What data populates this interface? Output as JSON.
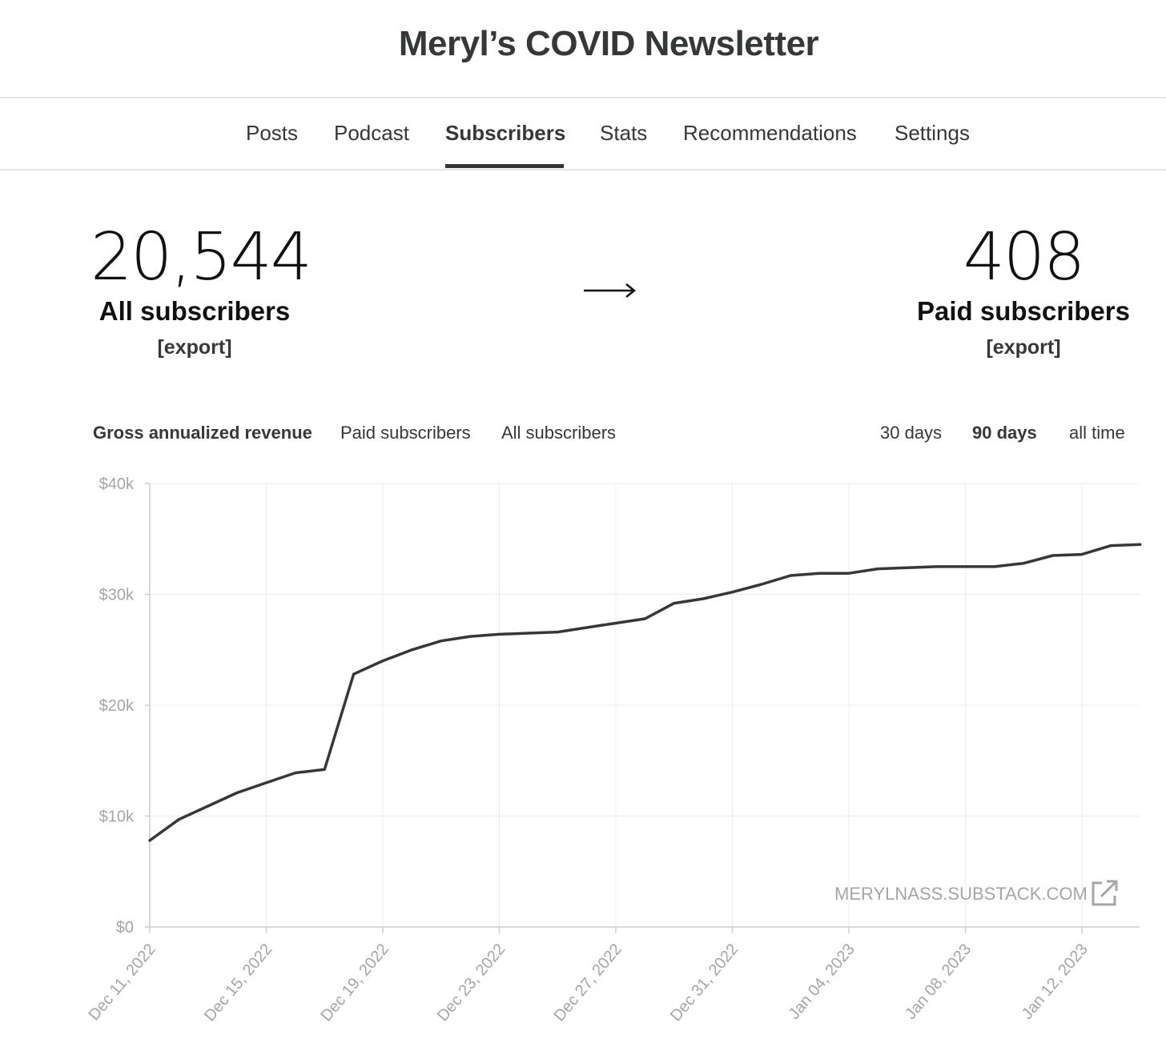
{
  "header": {
    "title": "Meryl’s COVID Newsletter"
  },
  "nav": {
    "tabs": [
      {
        "label": "Posts",
        "active": false
      },
      {
        "label": "Podcast",
        "active": false
      },
      {
        "label": "Subscribers",
        "active": true
      },
      {
        "label": "Stats",
        "active": false
      },
      {
        "label": "Recommendations",
        "active": false
      },
      {
        "label": "Settings",
        "active": false
      }
    ]
  },
  "stats": {
    "all": {
      "value": "20,544",
      "label": "All subscribers",
      "export": "[export]"
    },
    "arrow": "→",
    "paid": {
      "value": "408",
      "label": "Paid subscribers",
      "export": "[export]"
    }
  },
  "chart_tabs": {
    "metrics": [
      {
        "label": "Gross annualized revenue",
        "active": true
      },
      {
        "label": "Paid subscribers",
        "active": false
      },
      {
        "label": "All subscribers",
        "active": false
      }
    ],
    "ranges": [
      {
        "label": "30 days",
        "active": false
      },
      {
        "label": "90 days",
        "active": true
      },
      {
        "label": "all time",
        "active": false
      }
    ]
  },
  "chart_data": {
    "type": "line",
    "y_tick_labels": [
      "$0",
      "$10k",
      "$20k",
      "$30k",
      "$40k"
    ],
    "ylim": [
      0,
      40000
    ],
    "x_tick_labels": [
      "Dec 11, 2022",
      "Dec 15, 2022",
      "Dec 19, 2022",
      "Dec 23, 2022",
      "Dec 27, 2022",
      "Dec 31, 2022",
      "Jan 04, 2023",
      "Jan 08, 2023",
      "Jan 12, 2023"
    ],
    "x_range": [
      "Dec 11, 2022",
      "Jan 13, 2023"
    ],
    "grid": true,
    "series": [
      {
        "color": "#363737",
        "points": [
          {
            "x": "2022-12-11",
            "y": 7800
          },
          {
            "x": "2022-12-12",
            "y": 9700
          },
          {
            "x": "2022-12-13",
            "y": 10900
          },
          {
            "x": "2022-12-14",
            "y": 12100
          },
          {
            "x": "2022-12-15",
            "y": 13000
          },
          {
            "x": "2022-12-16",
            "y": 13900
          },
          {
            "x": "2022-12-17",
            "y": 14200
          },
          {
            "x": "2022-12-18",
            "y": 22800
          },
          {
            "x": "2022-12-19",
            "y": 24000
          },
          {
            "x": "2022-12-20",
            "y": 25000
          },
          {
            "x": "2022-12-21",
            "y": 25800
          },
          {
            "x": "2022-12-22",
            "y": 26200
          },
          {
            "x": "2022-12-23",
            "y": 26400
          },
          {
            "x": "2022-12-24",
            "y": 26500
          },
          {
            "x": "2022-12-25",
            "y": 26600
          },
          {
            "x": "2022-12-26",
            "y": 27000
          },
          {
            "x": "2022-12-27",
            "y": 27400
          },
          {
            "x": "2022-12-28",
            "y": 27800
          },
          {
            "x": "2022-12-29",
            "y": 29200
          },
          {
            "x": "2022-12-30",
            "y": 29600
          },
          {
            "x": "2022-12-31",
            "y": 30200
          },
          {
            "x": "2023-01-01",
            "y": 30900
          },
          {
            "x": "2023-01-02",
            "y": 31700
          },
          {
            "x": "2023-01-03",
            "y": 31900
          },
          {
            "x": "2023-01-04",
            "y": 31900
          },
          {
            "x": "2023-01-05",
            "y": 32300
          },
          {
            "x": "2023-01-06",
            "y": 32400
          },
          {
            "x": "2023-01-07",
            "y": 32500
          },
          {
            "x": "2023-01-08",
            "y": 32500
          },
          {
            "x": "2023-01-09",
            "y": 32500
          },
          {
            "x": "2023-01-10",
            "y": 32800
          },
          {
            "x": "2023-01-11",
            "y": 33500
          },
          {
            "x": "2023-01-12",
            "y": 33600
          },
          {
            "x": "2023-01-13",
            "y": 34400
          },
          {
            "x": "2023-01-14",
            "y": 34500
          }
        ]
      }
    ]
  },
  "watermark": {
    "text": "MERYLNASS.SUBSTACK.COM",
    "icon": "external-link-icon"
  }
}
